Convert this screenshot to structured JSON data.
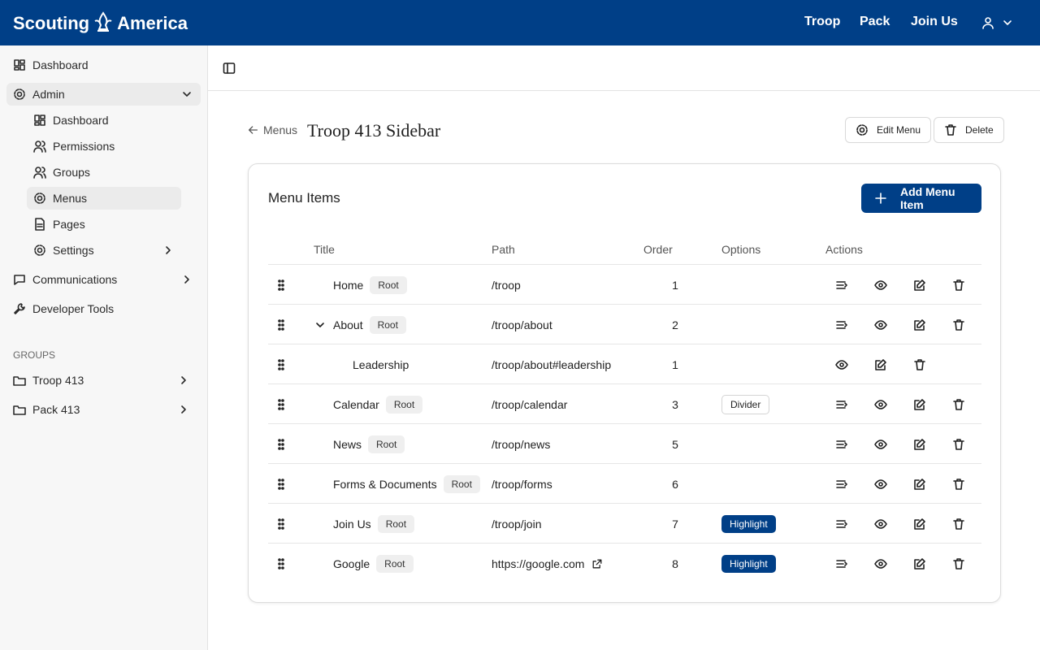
{
  "header": {
    "brand_left": "Scouting",
    "brand_right": "America",
    "nav": [
      "Troop",
      "Pack",
      "Join Us"
    ]
  },
  "sidebar": {
    "items": [
      {
        "label": "Dashboard"
      },
      {
        "label": "Admin",
        "children": [
          {
            "label": "Dashboard"
          },
          {
            "label": "Permissions"
          },
          {
            "label": "Groups"
          },
          {
            "label": "Menus"
          },
          {
            "label": "Pages"
          },
          {
            "label": "Settings"
          }
        ]
      },
      {
        "label": "Communications"
      },
      {
        "label": "Developer Tools"
      }
    ],
    "groups_heading": "GROUPS",
    "groups": [
      "Troop 413",
      "Pack 413"
    ]
  },
  "page": {
    "back": "Menus",
    "title": "Troop 413 Sidebar",
    "actions": [
      "Edit Menu",
      "Delete"
    ]
  },
  "table": {
    "heading": "Menu Items",
    "add_button": "Add Menu Item",
    "columns": [
      "Title",
      "Path",
      "Order",
      "Options",
      "Actions"
    ],
    "rows": [
      {
        "title": "Home",
        "badge": "Root",
        "path": "/troop",
        "order": 1
      },
      {
        "title": "About",
        "badge": "Root",
        "path": "/troop/about",
        "order": 2,
        "children": [
          {
            "title": "Leadership",
            "path": "/troop/about#leadership",
            "order": 1
          }
        ]
      },
      {
        "title": "Calendar",
        "badge": "Root",
        "path": "/troop/calendar",
        "order": 3,
        "option": "Divider",
        "option_style": "outline"
      },
      {
        "title": "News",
        "badge": "Root",
        "path": "/troop/news",
        "order": 5
      },
      {
        "title": "Forms & Documents",
        "badge": "Root",
        "path": "/troop/forms",
        "order": 6
      },
      {
        "title": "Join Us",
        "badge": "Root",
        "path": "/troop/join",
        "order": 7,
        "option": "Highlight",
        "option_style": "filled"
      },
      {
        "title": "Google",
        "badge": "Root",
        "path": "https://google.com",
        "order": 8,
        "option": "Highlight",
        "option_style": "filled",
        "external": true
      }
    ]
  }
}
